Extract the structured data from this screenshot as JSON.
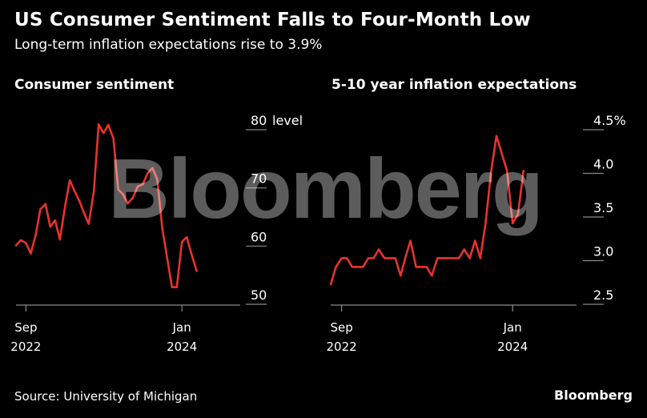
{
  "header": {
    "title": "US Consumer Sentiment Falls to Four-Month Low",
    "subtitle": "Long-term inflation expectations rise to 3.9%"
  },
  "footer": {
    "source": "Source: University of Michigan",
    "brand": "Bloomberg"
  },
  "watermark": "Bloomberg",
  "colors": {
    "background": "#000000",
    "line": "#e8332c",
    "text": "#ffffff",
    "axis": "#8a8a8a"
  },
  "chart_data": [
    {
      "type": "line",
      "title": "Consumer sentiment",
      "ylabel": "level",
      "x_start": "2022-08",
      "x_end": "2024-07",
      "xtick_labels": [
        {
          "x": "2022-09",
          "label": [
            "Sep",
            "2022"
          ]
        },
        {
          "x": "2024-01",
          "label": [
            "Jan",
            "2024"
          ]
        }
      ],
      "ylim": [
        50,
        80
      ],
      "yticks": [
        {
          "value": 80,
          "label": "80"
        },
        {
          "value": 70,
          "label": "70"
        },
        {
          "value": 60,
          "label": "60"
        },
        {
          "value": 50,
          "label": "50"
        }
      ],
      "unit_label": "level",
      "grid": false,
      "series": [
        {
          "values": [
            {
              "x": "2022-08",
              "y": 58.2
            },
            {
              "x": "2022-08-16",
              "y": 59.1
            },
            {
              "x": "2022-09",
              "y": 58.6
            },
            {
              "x": "2022-09-16",
              "y": 56.8
            },
            {
              "x": "2022-10",
              "y": 59.9
            },
            {
              "x": "2022-10-16",
              "y": 64.4
            },
            {
              "x": "2022-11",
              "y": 65.3
            },
            {
              "x": "2022-11-16",
              "y": 61.4
            },
            {
              "x": "2022-12",
              "y": 62.5
            },
            {
              "x": "2022-12-16",
              "y": 59.2
            },
            {
              "x": "2023-01",
              "y": 64.9
            },
            {
              "x": "2023-01-16",
              "y": 69.4
            },
            {
              "x": "2023-02",
              "y": 67.4
            },
            {
              "x": "2023-02-16",
              "y": 65.7
            },
            {
              "x": "2023-03",
              "y": 63.8
            },
            {
              "x": "2023-03-16",
              "y": 61.9
            },
            {
              "x": "2023-04",
              "y": 67.5
            },
            {
              "x": "2023-04-16",
              "y": 79.0
            },
            {
              "x": "2023-05",
              "y": 77.5
            },
            {
              "x": "2023-05-16",
              "y": 78.9
            },
            {
              "x": "2023-06",
              "y": 76.6
            },
            {
              "x": "2023-06-16",
              "y": 67.8
            },
            {
              "x": "2023-07",
              "y": 67.0
            },
            {
              "x": "2023-07-16",
              "y": 65.4
            },
            {
              "x": "2023-08",
              "y": 66.4
            },
            {
              "x": "2023-08-16",
              "y": 68.3
            },
            {
              "x": "2023-09",
              "y": 68.7
            },
            {
              "x": "2023-09-16",
              "y": 70.6
            },
            {
              "x": "2023-10",
              "y": 71.5
            },
            {
              "x": "2023-10-16",
              "y": 69.5
            },
            {
              "x": "2023-11",
              "y": 61.0
            },
            {
              "x": "2023-11-16",
              "y": 56.0
            },
            {
              "x": "2023-12",
              "y": 51.0
            },
            {
              "x": "2023-12-16",
              "y": 51.0
            },
            {
              "x": "2024-01",
              "y": 58.8
            },
            {
              "x": "2024-01-16",
              "y": 59.6
            },
            {
              "x": "2024-02",
              "y": 56.5
            },
            {
              "x": "2024-02-16",
              "y": 53.8
            }
          ]
        }
      ]
    },
    {
      "type": "line",
      "title": "5-10 year inflation expectations",
      "ylabel": "%",
      "x_start": "2022-08",
      "x_end": "2024-07",
      "xtick_labels": [
        {
          "x": "2022-09",
          "label": [
            "Sep",
            "2022"
          ]
        },
        {
          "x": "2024-01",
          "label": [
            "Jan",
            "2024"
          ]
        }
      ],
      "ylim": [
        2.5,
        4.5
      ],
      "yticks": [
        {
          "value": 4.5,
          "label": "4.5%"
        },
        {
          "value": 4.0,
          "label": "4.0"
        },
        {
          "value": 3.5,
          "label": "3.5"
        },
        {
          "value": 3.0,
          "label": "3.0"
        },
        {
          "value": 2.5,
          "label": "2.5"
        }
      ],
      "unit_label": "",
      "grid": false,
      "series": [
        {
          "values": [
            {
              "x": "2022-08",
              "y": 2.6
            },
            {
              "x": "2022-08-16",
              "y": 2.8
            },
            {
              "x": "2022-09",
              "y": 2.9
            },
            {
              "x": "2022-09-16",
              "y": 2.9
            },
            {
              "x": "2022-10",
              "y": 2.8
            },
            {
              "x": "2022-10-16",
              "y": 2.8
            },
            {
              "x": "2022-11",
              "y": 2.8
            },
            {
              "x": "2022-11-16",
              "y": 2.9
            },
            {
              "x": "2022-12",
              "y": 2.9
            },
            {
              "x": "2022-12-16",
              "y": 3.0
            },
            {
              "x": "2023-01",
              "y": 2.9
            },
            {
              "x": "2023-01-16",
              "y": 2.9
            },
            {
              "x": "2023-02",
              "y": 2.9
            },
            {
              "x": "2023-02-16",
              "y": 2.7
            },
            {
              "x": "2023-03",
              "y": 2.9
            },
            {
              "x": "2023-03-16",
              "y": 3.1
            },
            {
              "x": "2023-04",
              "y": 2.8
            },
            {
              "x": "2023-04-16",
              "y": 2.8
            },
            {
              "x": "2023-05",
              "y": 2.8
            },
            {
              "x": "2023-05-16",
              "y": 2.7
            },
            {
              "x": "2023-06",
              "y": 2.9
            },
            {
              "x": "2023-06-16",
              "y": 2.9
            },
            {
              "x": "2023-07",
              "y": 2.9
            },
            {
              "x": "2023-07-16",
              "y": 2.9
            },
            {
              "x": "2023-08",
              "y": 2.9
            },
            {
              "x": "2023-08-16",
              "y": 3.0
            },
            {
              "x": "2023-09",
              "y": 2.9
            },
            {
              "x": "2023-09-16",
              "y": 3.1
            },
            {
              "x": "2023-10",
              "y": 2.9
            },
            {
              "x": "2023-10-16",
              "y": 3.3
            },
            {
              "x": "2023-11",
              "y": 3.9
            },
            {
              "x": "2023-11-16",
              "y": 4.3
            },
            {
              "x": "2023-12",
              "y": 4.1
            },
            {
              "x": "2023-12-16",
              "y": 3.9
            },
            {
              "x": "2024-01",
              "y": 3.3
            },
            {
              "x": "2024-01-16",
              "y": 3.4
            },
            {
              "x": "2024-02",
              "y": 3.9
            }
          ]
        }
      ]
    }
  ]
}
